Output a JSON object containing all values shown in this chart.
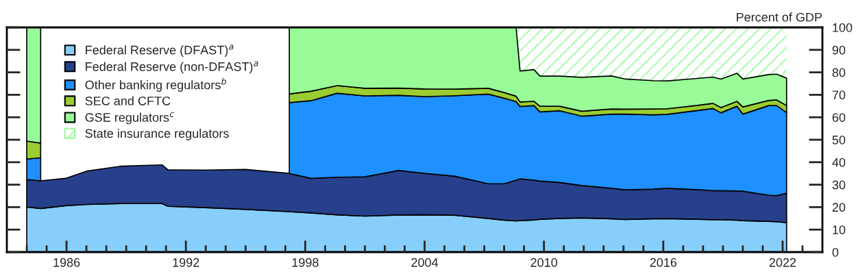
{
  "chart_data": {
    "type": "area",
    "stacked": true,
    "ylabel": "Percent of GDP",
    "x": [
      1984.0,
      1984.7,
      1986,
      1987,
      1988.7,
      1990.8,
      1991.1,
      1993,
      1995,
      1997.2,
      1998.3,
      1999.6,
      2001,
      2002.7,
      2004,
      2005.5,
      2007.2,
      2008.0,
      2008.6,
      2008.8,
      2009.5,
      2009.8,
      2010.8,
      2011.9,
      2013.4,
      2014.1,
      2015.5,
      2016.2,
      2017.7,
      2018.5,
      2018.9,
      2019.7,
      2020.0,
      2021.3,
      2021.7,
      2022.2
    ],
    "series": [
      {
        "name": "Federal Reserve (DFAST)$^{a}$",
        "color": "#87cefa",
        "values": [
          20.1,
          19.4,
          20.7,
          21.2,
          21.6,
          21.6,
          20.4,
          19.8,
          19.0,
          18.0,
          17.4,
          16.6,
          16.0,
          16.5,
          16.6,
          16.4,
          15.0,
          14.2,
          13.9,
          14.0,
          14.3,
          14.6,
          15.0,
          15.2,
          14.8,
          14.5,
          14.8,
          14.9,
          14.6,
          14.4,
          14.4,
          14.2,
          14.0,
          13.7,
          13.5,
          13.1
        ]
      },
      {
        "name": "Federal Reserve (non-DFAST)$^{a}$",
        "color": "#27408b",
        "values": [
          12.2,
          12.3,
          12.2,
          14.8,
          16.6,
          17.2,
          16.2,
          16.7,
          17.8,
          17.0,
          15.4,
          16.7,
          17.5,
          19.8,
          18.4,
          17.4,
          15.4,
          16.2,
          18.1,
          18.6,
          17.7,
          17.0,
          16.0,
          14.4,
          13.6,
          13.2,
          13.2,
          13.5,
          13.2,
          12.9,
          12.9,
          13.0,
          13.1,
          11.6,
          11.6,
          13.1
        ]
      },
      {
        "name": "Other banking regulators$^{b}$",
        "color": "#1e90ff",
        "values": [
          9.1,
          10.3,
          null,
          null,
          null,
          null,
          null,
          null,
          null,
          31.5,
          34.6,
          37.4,
          36.0,
          33.5,
          34.2,
          35.8,
          39.9,
          38.1,
          35.0,
          32.2,
          33.2,
          30.8,
          31.9,
          30.9,
          33.0,
          33.7,
          33.1,
          32.9,
          35.2,
          36.6,
          34.7,
          37.7,
          34.3,
          39.9,
          40.1,
          35.9
        ]
      },
      {
        "name": "SEC and CFTC",
        "color": "#9acd32",
        "values": [
          8.0,
          6.5,
          null,
          null,
          null,
          null,
          null,
          null,
          null,
          3.9,
          4.2,
          3.4,
          3.4,
          3.2,
          3.4,
          2.9,
          2.6,
          2.5,
          2.4,
          2.0,
          1.9,
          2.5,
          2.0,
          2.2,
          2.3,
          2.2,
          2.6,
          2.5,
          2.3,
          2.3,
          2.3,
          2.2,
          3.2,
          2.3,
          2.5,
          3.1
        ]
      },
      {
        "name": "GSE regulators$^{c}$",
        "color": "#98fb98",
        "values": [
          50.6,
          51.5,
          null,
          null,
          null,
          null,
          null,
          null,
          null,
          29.6,
          28.4,
          25.9,
          27.1,
          27.0,
          27.4,
          27.5,
          27.1,
          29.0,
          30.6,
          13.8,
          14.1,
          13.4,
          13.4,
          15.1,
          14.7,
          13.4,
          12.6,
          12.4,
          12.0,
          11.7,
          12.7,
          12.5,
          12.4,
          11.5,
          11.5,
          12.2
        ]
      },
      {
        "name": "State insurance regulators",
        "color": "#98fb98",
        "values": [
          null,
          null,
          null,
          null,
          null,
          null,
          null,
          null,
          null,
          null,
          null,
          null,
          null,
          null,
          null,
          null,
          null,
          null,
          0,
          19.4,
          18.8,
          21.7,
          21.7,
          22.2,
          21.6,
          23.0,
          23.7,
          23.8,
          22.7,
          22.1,
          23.0,
          20.4,
          23.0,
          21.0,
          20.8,
          22.6
        ]
      }
    ],
    "xlim": [
      1983,
      2024
    ],
    "xticks": [
      {
        "value": 1984,
        "label": null
      },
      {
        "value": 1985,
        "label": null
      },
      1986,
      {
        "value": 1987,
        "label": null
      },
      {
        "value": 1988,
        "label": null
      },
      {
        "value": 1989,
        "label": null
      },
      {
        "value": 1990,
        "label": null
      },
      {
        "value": 1991,
        "label": null
      },
      1992,
      {
        "value": 1993,
        "label": null
      },
      {
        "value": 1994,
        "label": null
      },
      {
        "value": 1995,
        "label": null
      },
      {
        "value": 1996,
        "label": null
      },
      {
        "value": 1997,
        "label": null
      },
      1998,
      {
        "value": 1999,
        "label": null
      },
      {
        "value": 2000,
        "label": null
      },
      {
        "value": 2001,
        "label": null
      },
      {
        "value": 2002,
        "label": null
      },
      {
        "value": 2003,
        "label": null
      },
      2004,
      {
        "value": 2005,
        "label": null
      },
      {
        "value": 2006,
        "label": null
      },
      {
        "value": 2007,
        "label": null
      },
      {
        "value": 2008,
        "label": null
      },
      {
        "value": 2009,
        "label": null
      },
      2010,
      {
        "value": 2011,
        "label": null
      },
      {
        "value": 2012,
        "label": null
      },
      {
        "value": 2013,
        "label": null
      },
      {
        "value": 2014,
        "label": null
      },
      {
        "value": 2015,
        "label": null
      },
      2016,
      {
        "value": 2017,
        "label": null
      },
      {
        "value": 2018,
        "label": null
      },
      {
        "value": 2019,
        "label": null
      },
      {
        "value": 2020,
        "label": null
      },
      {
        "value": 2021,
        "label": null
      },
      2022,
      {
        "value": 2023,
        "label": null
      }
    ],
    "ylim": [
      0,
      100
    ],
    "yticks": [
      0,
      10,
      20,
      30,
      40,
      50,
      60,
      70,
      80,
      90,
      100
    ],
    "grid": false,
    "legend": "top left"
  }
}
